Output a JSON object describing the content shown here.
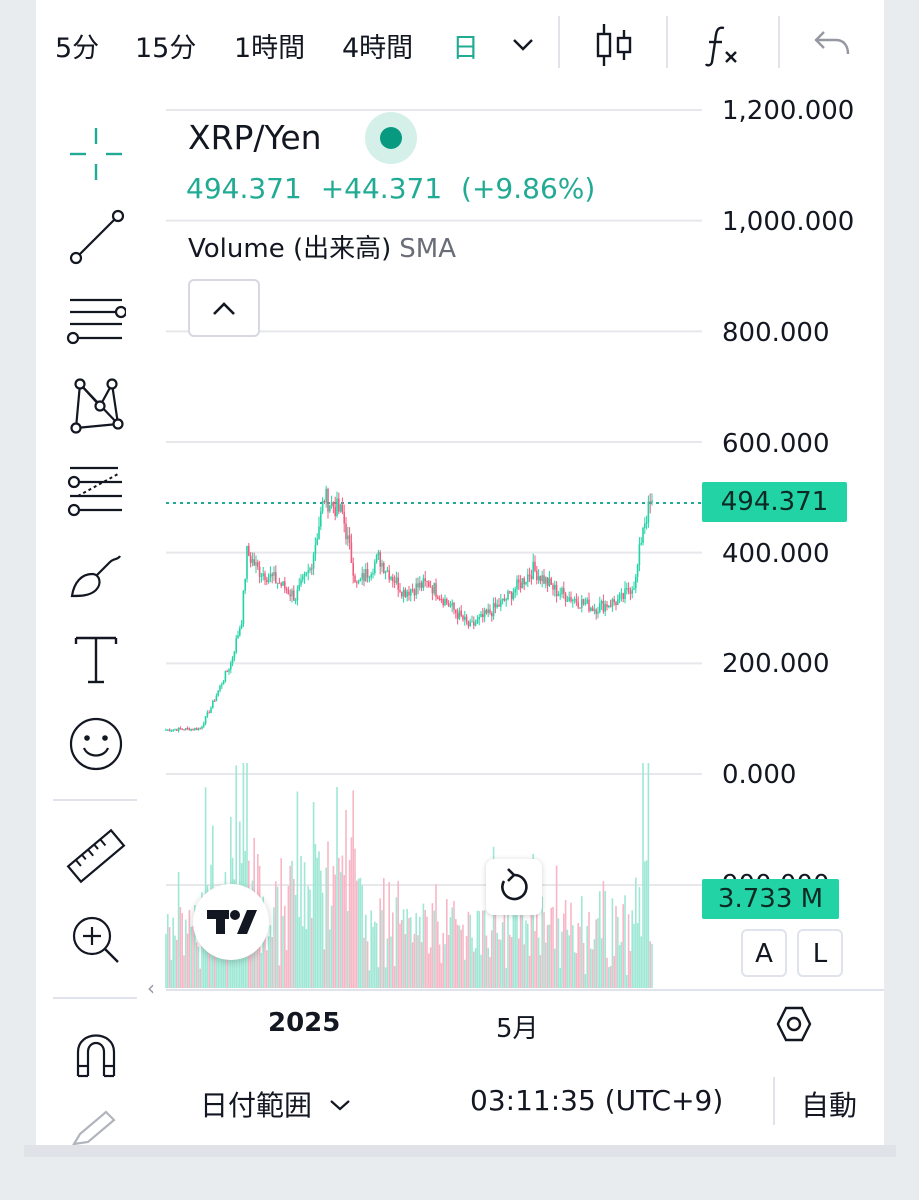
{
  "toolbar": {
    "timeframes": [
      "5分",
      "15分",
      "1時間",
      "4時間",
      "日"
    ],
    "active_timeframe": "日",
    "icons": [
      "chevron-down-icon",
      "candlestick-icon",
      "indicator-fx-icon",
      "undo-icon"
    ]
  },
  "left_tools": [
    "crosshair-icon",
    "trend-line-icon",
    "fib-retracement-icon",
    "pattern-icon",
    "gann-fan-icon",
    "brush-icon",
    "text-icon",
    "emoji-icon",
    "ruler-icon",
    "zoom-in-icon",
    "magnet-icon",
    "pencil-icon"
  ],
  "legend": {
    "symbol": "XRP/Yen",
    "last": "494.371",
    "change": "+44.371",
    "change_pct": "(+9.86%)",
    "volume_label": "Volume (出来高)",
    "volume_ma": "SMA"
  },
  "price_axis": {
    "ticks": [
      "1,200.000",
      "1,000.000",
      "800.000",
      "600.000",
      "400.000",
      "200.000",
      "0.000"
    ],
    "volume_tick": "900.000",
    "last_price_tag": "494.371",
    "volume_tag": "3.733 M",
    "auto_button": "A",
    "log_button": "L"
  },
  "time_axis": {
    "labels": [
      "2025",
      "5月"
    ]
  },
  "footer": {
    "date_range": "日付範囲",
    "clock": "03:11:35 (UTC+9)",
    "auto": "自動"
  },
  "colors": {
    "up": "#22d3a6",
    "down": "#f05c7e",
    "up_volume": "#9fe8d6",
    "down_volume": "#f7b7c6",
    "accent": "#22ab94",
    "grid": "#e6e8ec"
  },
  "chart_data": {
    "type": "candlestick",
    "interval": "daily",
    "ylim": [
      0,
      1200
    ],
    "y_ticks": [
      0,
      200,
      400,
      600,
      800,
      1000,
      1200
    ],
    "last_price": 494.371,
    "approx_close_path": [
      {
        "date": "2024-10-20",
        "close": 80
      },
      {
        "date": "2024-11-08",
        "close": 82
      },
      {
        "date": "2024-11-14",
        "close": 120
      },
      {
        "date": "2024-11-20",
        "close": 165
      },
      {
        "date": "2024-11-25",
        "close": 200
      },
      {
        "date": "2024-12-01",
        "close": 280
      },
      {
        "date": "2024-12-04",
        "close": 400
      },
      {
        "date": "2024-12-10",
        "close": 370
      },
      {
        "date": "2024-12-20",
        "close": 350
      },
      {
        "date": "2024-12-31",
        "close": 320
      },
      {
        "date": "2025-01-08",
        "close": 370
      },
      {
        "date": "2025-01-16",
        "close": 500
      },
      {
        "date": "2025-01-26",
        "close": 470
      },
      {
        "date": "2025-02-03",
        "close": 340
      },
      {
        "date": "2025-02-15",
        "close": 390
      },
      {
        "date": "2025-03-01",
        "close": 330
      },
      {
        "date": "2025-03-15",
        "close": 345
      },
      {
        "date": "2025-04-07",
        "close": 265
      },
      {
        "date": "2025-04-25",
        "close": 310
      },
      {
        "date": "2025-05-12",
        "close": 370
      },
      {
        "date": "2025-05-25",
        "close": 330
      },
      {
        "date": "2025-06-15",
        "close": 300
      },
      {
        "date": "2025-06-30",
        "close": 315
      },
      {
        "date": "2025-07-08",
        "close": 350
      },
      {
        "date": "2025-07-12",
        "close": 450
      },
      {
        "date": "2025-07-17",
        "close": 494.371
      }
    ],
    "volume_last": "3.733 M"
  }
}
